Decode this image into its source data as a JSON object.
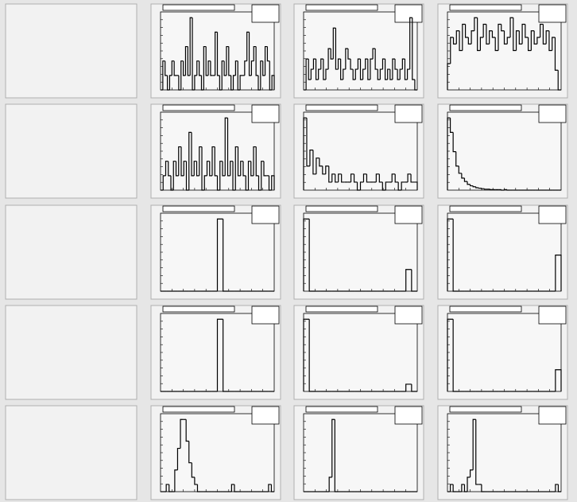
{
  "rows": [
    {
      "pads": [
        {
          "values": [
            0,
            2,
            1,
            0,
            1,
            2,
            1,
            1,
            0,
            2,
            1,
            3,
            1,
            5,
            0,
            1,
            2,
            1,
            0,
            3,
            1,
            2,
            1,
            1,
            4,
            1,
            0,
            2,
            1,
            3,
            1,
            0,
            1,
            2,
            0,
            1,
            1,
            2,
            4,
            1,
            2,
            3,
            1,
            0,
            2,
            1,
            3,
            2,
            0,
            1
          ]
        },
        {
          "values": [
            0,
            3,
            1,
            2,
            3,
            1,
            2,
            3,
            1,
            2,
            4,
            3,
            6,
            2,
            3,
            1,
            2,
            4,
            3,
            2,
            1,
            2,
            3,
            1,
            2,
            3,
            1,
            3,
            4,
            2,
            1,
            2,
            3,
            1,
            2,
            1,
            3,
            2,
            1,
            2,
            3,
            1,
            2,
            7,
            1,
            0
          ]
        },
        {
          "values": [
            4,
            8,
            7,
            9,
            6,
            10,
            8,
            7,
            9,
            11,
            6,
            8,
            10,
            7,
            9,
            8,
            6,
            10,
            9,
            7,
            8,
            11,
            6,
            9,
            7,
            10,
            8,
            6,
            9,
            7,
            8,
            10,
            7,
            9,
            6,
            8,
            3,
            0
          ]
        }
      ]
    },
    {
      "pads": [
        {
          "values": [
            0,
            1,
            2,
            1,
            0,
            2,
            1,
            3,
            1,
            2,
            0,
            4,
            1,
            2,
            1,
            3,
            0,
            1,
            2,
            1,
            3,
            1,
            0,
            2,
            1,
            5,
            1,
            2,
            0,
            3,
            1,
            2,
            1,
            0,
            2,
            1,
            3,
            1,
            0,
            2,
            1,
            1,
            0,
            1
          ]
        },
        {
          "values": [
            9,
            3,
            5,
            2,
            4,
            3,
            2,
            3,
            1,
            2,
            1,
            2,
            1,
            1,
            1,
            2,
            1,
            0,
            1,
            2,
            1,
            1,
            1,
            2,
            1,
            0,
            1,
            1,
            2,
            1,
            0,
            1,
            1,
            2,
            1,
            1
          ]
        },
        {
          "values": [
            150,
            120,
            80,
            50,
            35,
            25,
            18,
            12,
            9,
            7,
            5,
            4,
            3,
            2,
            2,
            1,
            1,
            1,
            1,
            0,
            1,
            0,
            0,
            0,
            0,
            0,
            0,
            0,
            0,
            0,
            0,
            0,
            0,
            0,
            0,
            0,
            0,
            0,
            0,
            0
          ]
        }
      ]
    },
    {
      "pads": [
        {
          "values": [
            0,
            0,
            0,
            0,
            0,
            0,
            0,
            0,
            0,
            0,
            10,
            0,
            0,
            0,
            0,
            0,
            0,
            0,
            0,
            0
          ]
        },
        {
          "values": [
            10,
            0,
            0,
            0,
            0,
            0,
            0,
            0,
            0,
            0,
            0,
            0,
            0,
            0,
            0,
            0,
            0,
            0,
            3,
            0
          ]
        },
        {
          "values": [
            10,
            0,
            0,
            0,
            0,
            0,
            0,
            0,
            0,
            0,
            0,
            0,
            0,
            0,
            0,
            0,
            0,
            0,
            0,
            5
          ]
        }
      ]
    },
    {
      "pads": [
        {
          "values": [
            0,
            0,
            0,
            0,
            0,
            0,
            0,
            0,
            0,
            0,
            10,
            0,
            0,
            0,
            0,
            0,
            0,
            0,
            0,
            0
          ]
        },
        {
          "values": [
            10,
            0,
            0,
            0,
            0,
            0,
            0,
            0,
            0,
            0,
            0,
            0,
            0,
            0,
            0,
            0,
            0,
            0,
            1,
            0
          ]
        },
        {
          "values": [
            10,
            0,
            0,
            0,
            0,
            0,
            0,
            0,
            0,
            0,
            0,
            0,
            0,
            0,
            0,
            0,
            0,
            0,
            0,
            3
          ]
        }
      ]
    },
    {
      "pads": [
        {
          "values": [
            0,
            0,
            1,
            0,
            0,
            3,
            6,
            10,
            10,
            7,
            4,
            2,
            1,
            0,
            0,
            0,
            0,
            0,
            0,
            0,
            0,
            0,
            0,
            0,
            0,
            1,
            0,
            0,
            0,
            0,
            0,
            0,
            0,
            0,
            0,
            0,
            0,
            0,
            1,
            0
          ]
        },
        {
          "values": [
            0,
            0,
            0,
            0,
            0,
            0,
            0,
            0,
            0,
            2,
            10,
            0,
            0,
            0,
            0,
            0,
            0,
            0,
            0,
            0,
            0,
            0,
            0,
            0,
            0,
            0,
            0,
            0,
            0,
            0,
            0,
            0,
            0,
            0,
            0,
            0,
            0,
            0,
            0,
            0
          ]
        },
        {
          "values": [
            0,
            1,
            0,
            0,
            0,
            1,
            0,
            2,
            3,
            10,
            1,
            1,
            0,
            0,
            0,
            0,
            0,
            0,
            0,
            0,
            0,
            0,
            0,
            0,
            0,
            0,
            0,
            0,
            0,
            0,
            0,
            0,
            0,
            0,
            0,
            0,
            0,
            0,
            1,
            0
          ]
        }
      ]
    }
  ]
}
